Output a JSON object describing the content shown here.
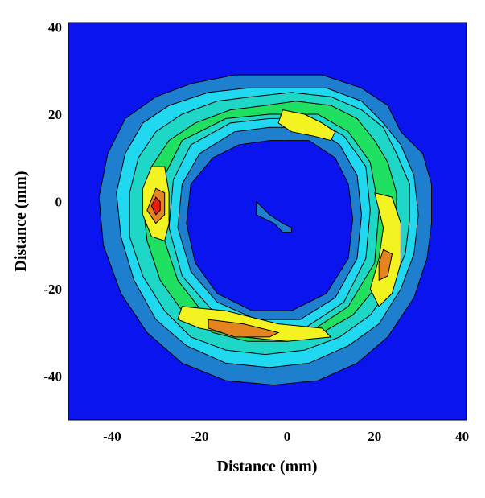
{
  "chart_data": {
    "type": "contour",
    "title": "",
    "xlabel": "Distance (mm)",
    "ylabel": "Distance (mm)",
    "xlim": [
      -50,
      41
    ],
    "ylim": [
      -50,
      41
    ],
    "xticks": [
      -40,
      -20,
      0,
      20,
      40
    ],
    "yticks": [
      40,
      20,
      0,
      -20,
      -40
    ],
    "grid": false,
    "legend": "none",
    "colors": {
      "background": "#0a14ee",
      "levels": [
        "#1f7fcf",
        "#20d8f0",
        "#1fd7c6",
        "#20e061",
        "#8fe02a",
        "#f3f321",
        "#e3841f",
        "#ee1b12"
      ]
    },
    "levels": [
      {
        "level": 1,
        "color": "#1f7fcf",
        "outer": [
          [
            -1,
            29
          ],
          [
            8,
            29
          ],
          [
            17,
            26
          ],
          [
            23,
            22
          ],
          [
            26,
            16
          ],
          [
            31,
            11
          ],
          [
            33,
            4
          ],
          [
            33,
            -5
          ],
          [
            32,
            -13
          ],
          [
            29,
            -22
          ],
          [
            23,
            -31
          ],
          [
            16,
            -37
          ],
          [
            7,
            -41
          ],
          [
            -3,
            -42
          ],
          [
            -14,
            -41
          ],
          [
            -24,
            -37
          ],
          [
            -32,
            -30
          ],
          [
            -38,
            -21
          ],
          [
            -42,
            -10
          ],
          [
            -43,
            1
          ],
          [
            -41,
            11
          ],
          [
            -37,
            19
          ],
          [
            -30,
            24
          ],
          [
            -22,
            27
          ],
          [
            -12,
            29
          ]
        ],
        "inner": [
          [
            -4,
            14
          ],
          [
            5,
            14
          ],
          [
            11,
            10
          ],
          [
            14,
            4
          ],
          [
            15,
            -4
          ],
          [
            14,
            -13
          ],
          [
            9,
            -21
          ],
          [
            1,
            -25
          ],
          [
            -8,
            -25
          ],
          [
            -16,
            -21
          ],
          [
            -21,
            -14
          ],
          [
            -23,
            -5
          ],
          [
            -22,
            4
          ],
          [
            -17,
            10
          ],
          [
            -11,
            13
          ]
        ]
      },
      {
        "level": 2,
        "color": "#20d8f0",
        "outer": [
          [
            0,
            26
          ],
          [
            9,
            26
          ],
          [
            17,
            23
          ],
          [
            22,
            18
          ],
          [
            26,
            13
          ],
          [
            29,
            6
          ],
          [
            30,
            -3
          ],
          [
            29,
            -12
          ],
          [
            26,
            -20
          ],
          [
            21,
            -28
          ],
          [
            14,
            -33
          ],
          [
            5,
            -37
          ],
          [
            -4,
            -38
          ],
          [
            -14,
            -37
          ],
          [
            -23,
            -33
          ],
          [
            -30,
            -27
          ],
          [
            -35,
            -18
          ],
          [
            -38,
            -8
          ],
          [
            -39,
            2
          ],
          [
            -37,
            11
          ],
          [
            -33,
            18
          ],
          [
            -27,
            22
          ],
          [
            -18,
            25
          ],
          [
            -9,
            26
          ]
        ],
        "inner": [
          [
            -4,
            17
          ],
          [
            6,
            17
          ],
          [
            12,
            13
          ],
          [
            16,
            6
          ],
          [
            17,
            -3
          ],
          [
            16,
            -13
          ],
          [
            11,
            -22
          ],
          [
            3,
            -27
          ],
          [
            -7,
            -27
          ],
          [
            -16,
            -23
          ],
          [
            -22,
            -16
          ],
          [
            -25,
            -6
          ],
          [
            -24,
            4
          ],
          [
            -20,
            11
          ],
          [
            -12,
            16
          ]
        ]
      },
      {
        "level": 3,
        "color": "#1fd7c6",
        "outer": [
          [
            1,
            25
          ],
          [
            10,
            24
          ],
          [
            17,
            21
          ],
          [
            22,
            17
          ],
          [
            25,
            11
          ],
          [
            28,
            4
          ],
          [
            28,
            -4
          ],
          [
            27,
            -12
          ],
          [
            24,
            -19
          ],
          [
            19,
            -26
          ],
          [
            12,
            -31
          ],
          [
            4,
            -34
          ],
          [
            -5,
            -35
          ],
          [
            -14,
            -34
          ],
          [
            -22,
            -31
          ],
          [
            -28,
            -25
          ],
          [
            -33,
            -17
          ],
          [
            -36,
            -8
          ],
          [
            -36,
            2
          ],
          [
            -34,
            10
          ],
          [
            -30,
            16
          ],
          [
            -24,
            20
          ],
          [
            -16,
            23
          ],
          [
            -8,
            24
          ]
        ],
        "inner": [
          [
            -4,
            19
          ],
          [
            6,
            19
          ],
          [
            13,
            15
          ],
          [
            18,
            8
          ],
          [
            19,
            -2
          ],
          [
            18,
            -13
          ],
          [
            13,
            -23
          ],
          [
            4,
            -29
          ],
          [
            -7,
            -29
          ],
          [
            -17,
            -25
          ],
          [
            -24,
            -17
          ],
          [
            -27,
            -6
          ],
          [
            -26,
            5
          ],
          [
            -22,
            13
          ],
          [
            -13,
            18
          ]
        ]
      },
      {
        "level": 4,
        "color": "#20e061",
        "outer": [
          [
            2,
            23
          ],
          [
            10,
            22
          ],
          [
            16,
            19
          ],
          [
            20,
            14
          ],
          [
            23,
            9
          ],
          [
            25,
            2
          ],
          [
            25,
            -6
          ],
          [
            23,
            -13
          ],
          [
            20,
            -20
          ],
          [
            15,
            -26
          ],
          [
            8,
            -30
          ],
          [
            0,
            -32
          ],
          [
            -9,
            -32
          ],
          [
            -17,
            -30
          ],
          [
            -24,
            -25
          ],
          [
            -29,
            -18
          ],
          [
            -32,
            -9
          ],
          [
            -33,
            0
          ],
          [
            -31,
            8
          ],
          [
            -27,
            14
          ],
          [
            -21,
            18
          ],
          [
            -13,
            21
          ],
          [
            -5,
            22
          ]
        ],
        "inner": [
          [
            -4,
            20
          ],
          [
            7,
            20
          ],
          [
            14,
            16
          ],
          [
            19,
            9
          ],
          [
            21,
            -2
          ],
          [
            20,
            -14
          ],
          [
            14,
            -24
          ],
          [
            5,
            -30
          ],
          [
            -7,
            -31
          ],
          [
            -18,
            -27
          ],
          [
            -25,
            -18
          ],
          [
            -29,
            -6
          ],
          [
            -28,
            6
          ],
          [
            -24,
            14
          ],
          [
            -14,
            19
          ]
        ]
      },
      {
        "level": 5,
        "color": "#8fe02a",
        "points": []
      },
      {
        "level": 6,
        "color": "#f3f321",
        "points": [
          [
            [
              -31,
              8
            ],
            [
              -28,
              8
            ],
            [
              -27,
              2
            ],
            [
              -27,
              -5
            ],
            [
              -28,
              -9
            ],
            [
              -31,
              -8
            ],
            [
              -33,
              -3
            ],
            [
              -33,
              3
            ]
          ],
          [
            [
              -1,
              21
            ],
            [
              4,
              20
            ],
            [
              8,
              18
            ],
            [
              11,
              16
            ],
            [
              10,
              14
            ],
            [
              6,
              15
            ],
            [
              1,
              16
            ],
            [
              -2,
              18
            ]
          ],
          [
            [
              20,
              2
            ],
            [
              24,
              1
            ],
            [
              26,
              -5
            ],
            [
              26,
              -14
            ],
            [
              24,
              -21
            ],
            [
              21,
              -24
            ],
            [
              19,
              -20
            ],
            [
              21,
              -13
            ],
            [
              22,
              -6
            ]
          ],
          [
            [
              -24,
              -24
            ],
            [
              -14,
              -25
            ],
            [
              -2,
              -28
            ],
            [
              8,
              -29
            ],
            [
              10,
              -31
            ],
            [
              0,
              -32
            ],
            [
              -10,
              -31
            ],
            [
              -20,
              -29
            ],
            [
              -25,
              -27
            ]
          ]
        ]
      },
      {
        "level": 7,
        "color": "#e3841f",
        "points": [
          [
            [
              -30,
              3
            ],
            [
              -28,
              2
            ],
            [
              -28,
              -3
            ],
            [
              -30,
              -5
            ],
            [
              -32,
              -2
            ]
          ],
          [
            [
              -18,
              -27
            ],
            [
              -10,
              -28
            ],
            [
              -2,
              -30
            ],
            [
              -4,
              -31
            ],
            [
              -12,
              -31
            ],
            [
              -18,
              -29
            ]
          ],
          [
            [
              22,
              -11
            ],
            [
              24,
              -12
            ],
            [
              23,
              -17
            ],
            [
              21,
              -18
            ],
            [
              21,
              -14
            ]
          ]
        ]
      },
      {
        "level": 8,
        "color": "#ee1b12",
        "points": [
          [
            [
              -30,
              1
            ],
            [
              -29,
              0
            ],
            [
              -29,
              -2
            ],
            [
              -30,
              -3
            ],
            [
              -31,
              -1
            ]
          ]
        ]
      }
    ],
    "inner_spot": [
      [
        -6,
        -1
      ],
      [
        -4,
        -3
      ],
      [
        -1,
        -5
      ],
      [
        1,
        -6
      ],
      [
        1,
        -7
      ],
      [
        -1,
        -7
      ],
      [
        -3,
        -5
      ],
      [
        -5,
        -4
      ],
      [
        -7,
        -3
      ],
      [
        -7,
        0
      ]
    ]
  }
}
